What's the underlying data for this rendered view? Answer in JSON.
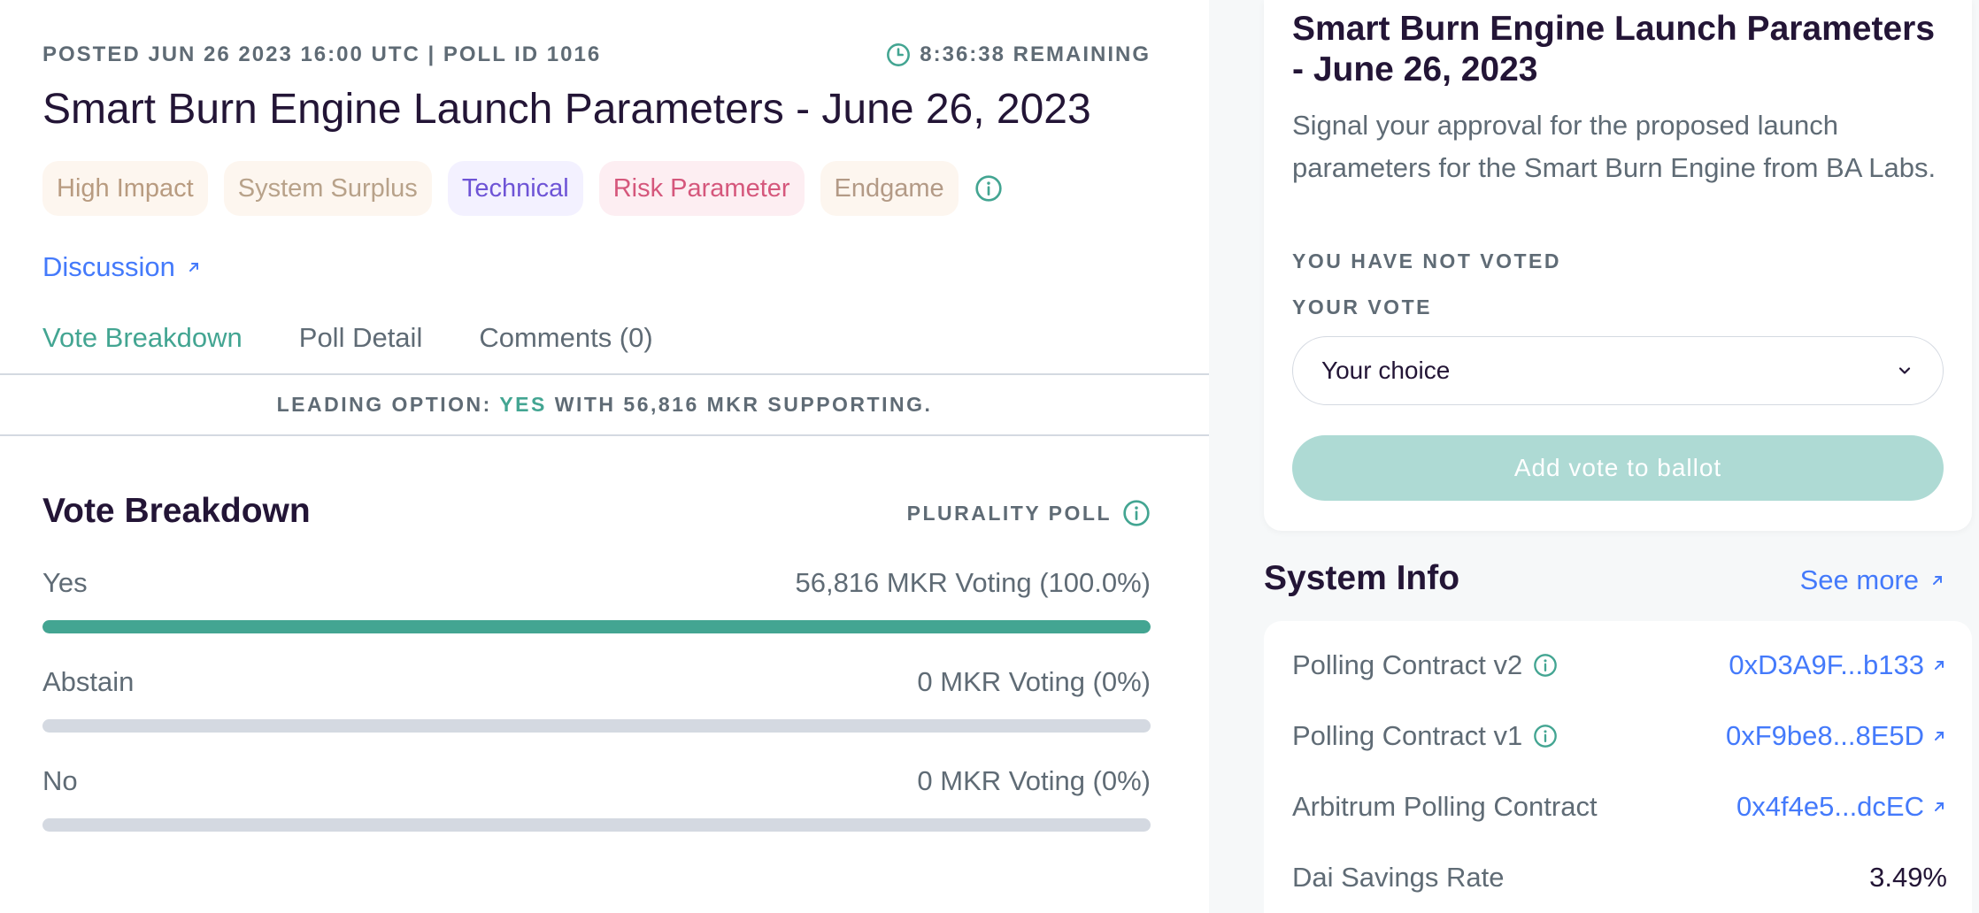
{
  "poll": {
    "meta": "POSTED JUN 26 2023 16:00 UTC | POLL ID 1016",
    "remaining": "8:36:38 REMAINING",
    "title": "Smart Burn Engine Launch Parameters - June 26, 2023",
    "tags": [
      {
        "label": "High Impact",
        "bg": "#fdf6ef",
        "color": "#b89b80"
      },
      {
        "label": "System Surplus",
        "bg": "#fdf6ef",
        "color": "#b8a28a"
      },
      {
        "label": "Technical",
        "bg": "#f3f1ff",
        "color": "#6e54d6"
      },
      {
        "label": "Risk Parameter",
        "bg": "#fdeef2",
        "color": "#d5577c"
      },
      {
        "label": "Endgame",
        "bg": "#fdf6ef",
        "color": "#b39a86"
      }
    ],
    "discussion": "Discussion"
  },
  "tabs": [
    "Vote Breakdown",
    "Poll Detail",
    "Comments (0)"
  ],
  "leading": {
    "prefix": "LEADING OPTION:",
    "option": "YES",
    "suffix": "WITH 56,816 MKR SUPPORTING."
  },
  "breakdown": {
    "title": "Vote Breakdown",
    "poll_type": "PLURALITY POLL",
    "options": [
      {
        "name": "Yes",
        "value": "56,816 MKR Voting (100.0%)",
        "percent": 100
      },
      {
        "name": "Abstain",
        "value": "0 MKR Voting (0%)",
        "percent": 0
      },
      {
        "name": "No",
        "value": "0 MKR Voting (0%)",
        "percent": 0
      }
    ]
  },
  "card": {
    "title": "Smart Burn Engine Launch Parameters - June 26, 2023",
    "description": "Signal your approval for the proposed launch parameters for the Smart Burn Engine from BA Labs.",
    "not_voted": "YOU HAVE NOT VOTED",
    "your_vote": "YOUR VOTE",
    "select_value": "Your choice",
    "add_button": "Add vote to ballot"
  },
  "system": {
    "title": "System Info",
    "see_more": "See more",
    "rows": [
      {
        "label": "Polling Contract v2",
        "value": "0xD3A9F...b133",
        "info": true,
        "link": true
      },
      {
        "label": "Polling Contract v1",
        "value": "0xF9be8...8E5D",
        "info": true,
        "link": true
      },
      {
        "label": "Arbitrum Polling Contract",
        "value": "0x4f4e5...dcEC",
        "info": false,
        "link": true
      },
      {
        "label": "Dai Savings Rate",
        "value": "3.49%",
        "info": false,
        "link": false
      }
    ]
  },
  "colors": {
    "accent": "#43a592",
    "link": "#447afb",
    "text": "#231536",
    "muted": "#5f6b75"
  }
}
